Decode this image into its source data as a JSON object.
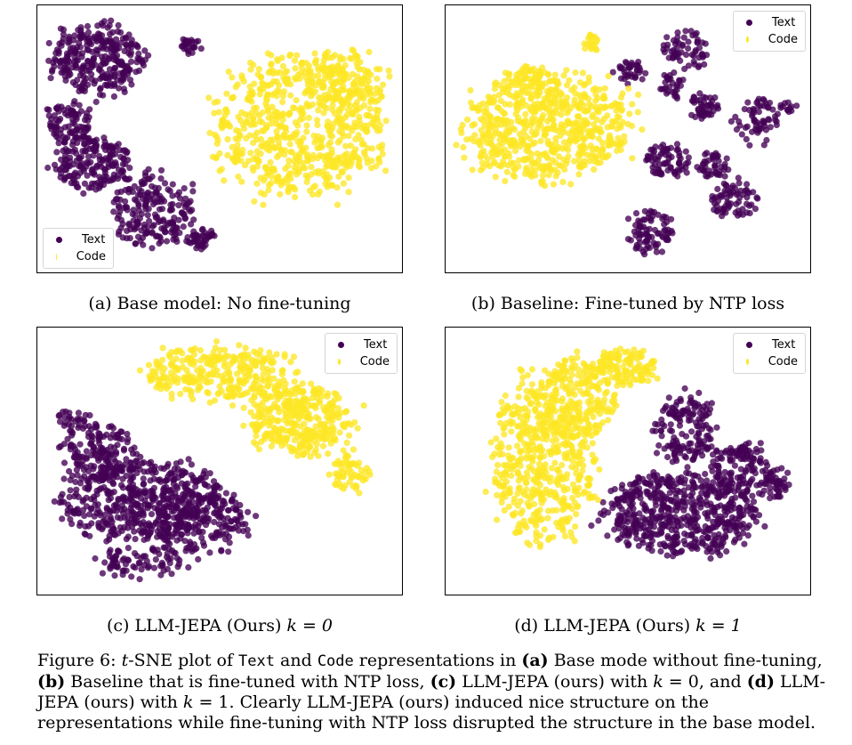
{
  "colors": {
    "text": "#440154",
    "code": "#fde725"
  },
  "chart_data": [
    {
      "type": "scatter",
      "id": "a",
      "caption": {
        "label": "(a) Base model: No fine-tuning"
      },
      "legend": {
        "placement": "bottom-left",
        "entries": [
          "Text",
          "Code"
        ]
      },
      "grid": false,
      "axes_ticks": false,
      "xlim": [
        0,
        1
      ],
      "ylim": [
        0,
        1
      ],
      "series": [
        {
          "name": "Text",
          "color": "#440154",
          "clusters": [
            {
              "cx": 0.17,
              "cy": 0.8,
              "rx": 0.13,
              "ry": 0.13,
              "n": 300
            },
            {
              "cx": 0.09,
              "cy": 0.56,
              "rx": 0.06,
              "ry": 0.08,
              "n": 90
            },
            {
              "cx": 0.15,
              "cy": 0.41,
              "rx": 0.1,
              "ry": 0.1,
              "n": 180
            },
            {
              "cx": 0.32,
              "cy": 0.23,
              "rx": 0.11,
              "ry": 0.14,
              "n": 200
            },
            {
              "cx": 0.45,
              "cy": 0.13,
              "rx": 0.04,
              "ry": 0.04,
              "n": 40
            },
            {
              "cx": 0.42,
              "cy": 0.85,
              "rx": 0.03,
              "ry": 0.03,
              "n": 25
            }
          ]
        },
        {
          "name": "Code",
          "color": "#fde725",
          "clusters": [
            {
              "cx": 0.72,
              "cy": 0.55,
              "rx": 0.23,
              "ry": 0.26,
              "n": 650
            },
            {
              "cx": 0.84,
              "cy": 0.72,
              "rx": 0.12,
              "ry": 0.12,
              "n": 120
            }
          ]
        }
      ]
    },
    {
      "type": "scatter",
      "id": "b",
      "caption": {
        "label": "(b) Baseline: Fine-tuned by NTP loss"
      },
      "legend": {
        "placement": "top-right",
        "entries": [
          "Text",
          "Code"
        ]
      },
      "grid": false,
      "axes_ticks": false,
      "xlim": [
        0,
        1
      ],
      "ylim": [
        0,
        1
      ],
      "series": [
        {
          "name": "Text",
          "color": "#440154",
          "clusters": [
            {
              "cx": 0.66,
              "cy": 0.83,
              "rx": 0.06,
              "ry": 0.07,
              "n": 60
            },
            {
              "cx": 0.51,
              "cy": 0.75,
              "rx": 0.04,
              "ry": 0.04,
              "n": 35
            },
            {
              "cx": 0.62,
              "cy": 0.7,
              "rx": 0.03,
              "ry": 0.05,
              "n": 30
            },
            {
              "cx": 0.71,
              "cy": 0.62,
              "rx": 0.04,
              "ry": 0.05,
              "n": 45
            },
            {
              "cx": 0.85,
              "cy": 0.57,
              "rx": 0.06,
              "ry": 0.08,
              "n": 60
            },
            {
              "cx": 0.61,
              "cy": 0.42,
              "rx": 0.06,
              "ry": 0.06,
              "n": 70
            },
            {
              "cx": 0.73,
              "cy": 0.4,
              "rx": 0.04,
              "ry": 0.05,
              "n": 45
            },
            {
              "cx": 0.79,
              "cy": 0.27,
              "rx": 0.06,
              "ry": 0.07,
              "n": 70
            },
            {
              "cx": 0.56,
              "cy": 0.15,
              "rx": 0.06,
              "ry": 0.08,
              "n": 80
            },
            {
              "cx": 0.94,
              "cy": 0.62,
              "rx": 0.02,
              "ry": 0.02,
              "n": 12
            }
          ]
        },
        {
          "name": "Code",
          "color": "#fde725",
          "clusters": [
            {
              "cx": 0.28,
              "cy": 0.55,
              "rx": 0.22,
              "ry": 0.2,
              "n": 650
            },
            {
              "cx": 0.4,
              "cy": 0.85,
              "rx": 0.02,
              "ry": 0.04,
              "n": 20
            },
            {
              "cx": 0.22,
              "cy": 0.73,
              "rx": 0.05,
              "ry": 0.05,
              "n": 40
            }
          ]
        }
      ]
    },
    {
      "type": "scatter",
      "id": "c",
      "caption": {
        "label": "(c) LLM-JEPA (Ours) ",
        "k_text": "k = 0"
      },
      "legend": {
        "placement": "top-right",
        "entries": [
          "Text",
          "Code"
        ]
      },
      "grid": false,
      "axes_ticks": false,
      "xlim": [
        0,
        1
      ],
      "ylim": [
        0,
        1
      ],
      "series": [
        {
          "name": "Text",
          "color": "#440154",
          "clusters": [
            {
              "cx": 0.28,
              "cy": 0.36,
              "rx": 0.22,
              "ry": 0.15,
              "n": 500
            },
            {
              "cx": 0.17,
              "cy": 0.53,
              "rx": 0.1,
              "ry": 0.1,
              "n": 140
            },
            {
              "cx": 0.45,
              "cy": 0.27,
              "rx": 0.13,
              "ry": 0.12,
              "n": 200
            },
            {
              "cx": 0.28,
              "cy": 0.12,
              "rx": 0.12,
              "ry": 0.06,
              "n": 80
            },
            {
              "cx": 0.1,
              "cy": 0.65,
              "rx": 0.05,
              "ry": 0.04,
              "n": 30
            }
          ]
        },
        {
          "name": "Code",
          "color": "#fde725",
          "clusters": [
            {
              "cx": 0.5,
              "cy": 0.83,
              "rx": 0.2,
              "ry": 0.1,
              "n": 300
            },
            {
              "cx": 0.72,
              "cy": 0.65,
              "rx": 0.14,
              "ry": 0.13,
              "n": 350
            },
            {
              "cx": 0.86,
              "cy": 0.45,
              "rx": 0.05,
              "ry": 0.07,
              "n": 60
            }
          ]
        }
      ]
    },
    {
      "type": "scatter",
      "id": "d",
      "caption": {
        "label": "(d) LLM-JEPA (Ours) ",
        "k_text": "k = 1"
      },
      "legend": {
        "placement": "top-right",
        "entries": [
          "Text",
          "Code"
        ]
      },
      "grid": false,
      "axes_ticks": false,
      "xlim": [
        0,
        1
      ],
      "ylim": [
        0,
        1
      ],
      "series": [
        {
          "name": "Text",
          "color": "#440154",
          "clusters": [
            {
              "cx": 0.64,
              "cy": 0.3,
              "rx": 0.2,
              "ry": 0.15,
              "n": 550
            },
            {
              "cx": 0.66,
              "cy": 0.62,
              "rx": 0.09,
              "ry": 0.12,
              "n": 150
            },
            {
              "cx": 0.81,
              "cy": 0.46,
              "rx": 0.09,
              "ry": 0.1,
              "n": 120
            },
            {
              "cx": 0.91,
              "cy": 0.41,
              "rx": 0.04,
              "ry": 0.06,
              "n": 40
            },
            {
              "cx": 0.83,
              "cy": 0.53,
              "rx": 0.03,
              "ry": 0.03,
              "n": 20
            }
          ]
        },
        {
          "name": "Code",
          "color": "#fde725",
          "clusters": [
            {
              "cx": 0.27,
              "cy": 0.5,
              "rx": 0.14,
              "ry": 0.3,
              "n": 520
            },
            {
              "cx": 0.36,
              "cy": 0.74,
              "rx": 0.1,
              "ry": 0.15,
              "n": 200
            },
            {
              "cx": 0.49,
              "cy": 0.85,
              "rx": 0.09,
              "ry": 0.07,
              "n": 120
            }
          ]
        }
      ]
    }
  ],
  "figure": {
    "figure_label": "Figure 6:",
    "t_letter": "t",
    "tsne_rest": "-SNE plot of ",
    "text_word": "Text",
    "and_word": " and ",
    "code_word": "Code",
    "reps_in": " representations in ",
    "a_label": "(a)",
    "a_text": " Base mode without fine-tuning, ",
    "b_label": "(b)",
    "b_text": " Baseline that is fine-tuned with NTP loss, ",
    "c_label": "(c)",
    "c_text": " LLM-JEPA (ours) with ",
    "k_var": "k",
    "c_k_rest": " = 0, and ",
    "d_label": "(d)",
    "d_text": " LLM-JEPA (ours) with ",
    "d_k_rest": " = 1. Clearly LLM-JEPA (ours) induced nice structure on the representations while fine-tuning with NTP loss disrupted the structure in the base model."
  }
}
